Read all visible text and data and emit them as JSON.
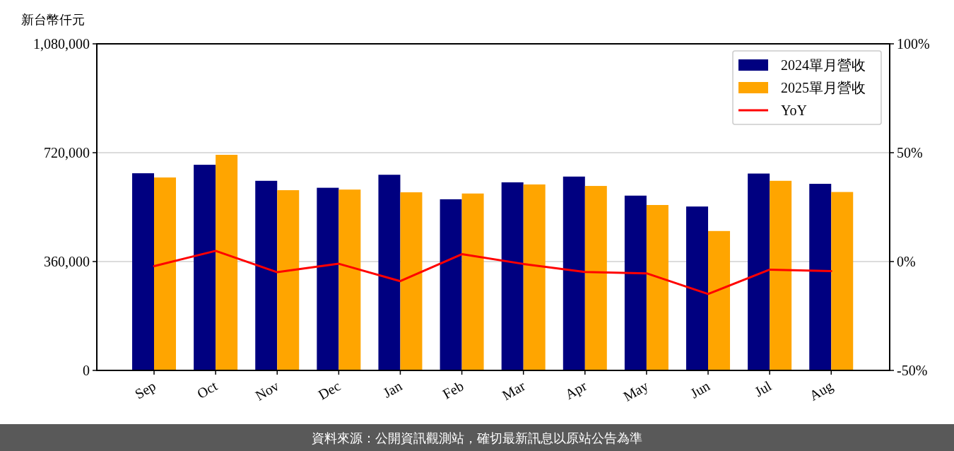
{
  "chart_data": {
    "type": "bar",
    "ylabel": "新台幣仟元",
    "categories": [
      "Sep",
      "Oct",
      "Nov",
      "Dec",
      "Jan",
      "Feb",
      "Mar",
      "Apr",
      "May",
      "Jun",
      "Jul",
      "Aug"
    ],
    "series": [
      {
        "name": "2024單月營收",
        "color": "#000080",
        "values": [
          652000,
          680000,
          627000,
          604000,
          647000,
          566000,
          622000,
          641000,
          578000,
          542000,
          651000,
          617000
        ]
      },
      {
        "name": "2025單月營收",
        "color": "#ffa500",
        "values": [
          638000,
          713000,
          596000,
          598000,
          589000,
          585000,
          615000,
          610000,
          547000,
          461000,
          627000,
          590000
        ]
      },
      {
        "name": "YoY",
        "type": "line",
        "axis": "y2",
        "color": "#ff0000",
        "values": [
          -2.1,
          4.9,
          -4.9,
          -1.0,
          -9.0,
          3.4,
          -1.1,
          -4.8,
          -5.4,
          -14.9,
          -3.7,
          -4.4
        ]
      }
    ],
    "ylim": [
      0,
      1080000
    ],
    "yticks": [
      {
        "value": 0,
        "label": "0"
      },
      {
        "value": 360000,
        "label": "360,000"
      },
      {
        "value": 720000,
        "label": "720,000"
      },
      {
        "value": 1080000,
        "label": "1,080,000"
      }
    ],
    "y2lim": [
      -50,
      100
    ],
    "y2ticks": [
      {
        "value": -50,
        "label": "-50%"
      },
      {
        "value": 0,
        "label": "0%"
      },
      {
        "value": 50,
        "label": "50%"
      },
      {
        "value": 100,
        "label": "100%"
      }
    ],
    "grid": "y",
    "legend": "top right",
    "marker": "none",
    "line_style": "solid",
    "annotations": [
      "資料來源：公開資訊觀測站，確切最新訊息以原站公告為準"
    ]
  }
}
